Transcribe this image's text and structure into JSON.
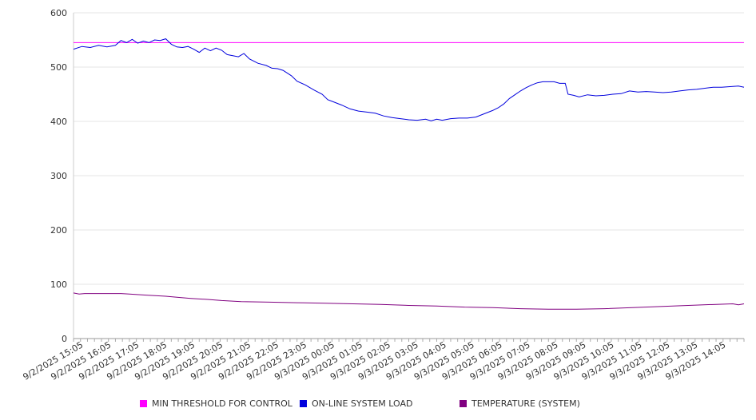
{
  "chart_data": {
    "type": "line",
    "ylim": [
      0,
      600
    ],
    "yticks": [
      0,
      100,
      200,
      300,
      400,
      500,
      600
    ],
    "x_labels": [
      "9/2/2025 15:05",
      "9/2/2025 16:05",
      "9/2/2025 17:05",
      "9/2/2025 18:05",
      "9/2/2025 19:05",
      "9/2/2025 20:05",
      "9/2/2025 21:05",
      "9/2/2025 22:05",
      "9/2/2025 23:05",
      "9/3/2025 00:05",
      "9/3/2025 01:05",
      "9/3/2025 02:05",
      "9/3/2025 03:05",
      "9/3/2025 04:05",
      "9/3/2025 05:05",
      "9/3/2025 06:05",
      "9/3/2025 07:05",
      "9/3/2025 08:05",
      "9/3/2025 09:05",
      "9/3/2025 10:05",
      "9/3/2025 11:05",
      "9/3/2025 12:05",
      "9/3/2025 13:05",
      "9/3/2025 14:05"
    ],
    "x_hours_range": [
      0,
      24
    ],
    "grid": true,
    "legend_position": "bottom",
    "series": [
      {
        "name": "MIN THRESHOLD FOR CONTROL",
        "color": "#ff00ff",
        "points": [
          [
            0,
            545
          ],
          [
            24,
            545
          ]
        ]
      },
      {
        "name": "ON-LINE SYSTEM LOAD",
        "color": "#0000dd",
        "points": [
          [
            0,
            533
          ],
          [
            0.3,
            538
          ],
          [
            0.6,
            536
          ],
          [
            0.9,
            540
          ],
          [
            1.2,
            537
          ],
          [
            1.5,
            540
          ],
          [
            1.7,
            549
          ],
          [
            1.9,
            545
          ],
          [
            2.1,
            551
          ],
          [
            2.3,
            544
          ],
          [
            2.5,
            548
          ],
          [
            2.7,
            545
          ],
          [
            2.9,
            550
          ],
          [
            3.1,
            549
          ],
          [
            3.3,
            552
          ],
          [
            3.5,
            542
          ],
          [
            3.7,
            537
          ],
          [
            3.9,
            536
          ],
          [
            4.1,
            538
          ],
          [
            4.3,
            533
          ],
          [
            4.5,
            527
          ],
          [
            4.7,
            535
          ],
          [
            4.9,
            530
          ],
          [
            5.1,
            535
          ],
          [
            5.3,
            531
          ],
          [
            5.5,
            523
          ],
          [
            5.7,
            521
          ],
          [
            5.9,
            519
          ],
          [
            6.1,
            525
          ],
          [
            6.3,
            515
          ],
          [
            6.6,
            507
          ],
          [
            6.9,
            503
          ],
          [
            7.1,
            498
          ],
          [
            7.3,
            497
          ],
          [
            7.5,
            494
          ],
          [
            7.8,
            484
          ],
          [
            8.0,
            474
          ],
          [
            8.3,
            467
          ],
          [
            8.6,
            458
          ],
          [
            8.9,
            450
          ],
          [
            9.1,
            440
          ],
          [
            9.3,
            436
          ],
          [
            9.6,
            430
          ],
          [
            9.9,
            423
          ],
          [
            10.2,
            419
          ],
          [
            10.5,
            417
          ],
          [
            10.8,
            415
          ],
          [
            11.1,
            410
          ],
          [
            11.4,
            407
          ],
          [
            11.7,
            405
          ],
          [
            12.0,
            403
          ],
          [
            12.3,
            402
          ],
          [
            12.6,
            404
          ],
          [
            12.8,
            401
          ],
          [
            13.0,
            404
          ],
          [
            13.2,
            402
          ],
          [
            13.5,
            405
          ],
          [
            13.8,
            406
          ],
          [
            14.1,
            406
          ],
          [
            14.4,
            408
          ],
          [
            14.7,
            414
          ],
          [
            15.0,
            420
          ],
          [
            15.2,
            425
          ],
          [
            15.4,
            432
          ],
          [
            15.6,
            442
          ],
          [
            15.8,
            449
          ],
          [
            16.0,
            456
          ],
          [
            16.2,
            462
          ],
          [
            16.4,
            467
          ],
          [
            16.6,
            471
          ],
          [
            16.8,
            473
          ],
          [
            17.0,
            473
          ],
          [
            17.2,
            473
          ],
          [
            17.4,
            470
          ],
          [
            17.6,
            470
          ],
          [
            17.7,
            450
          ],
          [
            17.9,
            448
          ],
          [
            18.1,
            445
          ],
          [
            18.4,
            449
          ],
          [
            18.7,
            447
          ],
          [
            19.0,
            448
          ],
          [
            19.3,
            450
          ],
          [
            19.6,
            451
          ],
          [
            19.9,
            456
          ],
          [
            20.2,
            454
          ],
          [
            20.5,
            455
          ],
          [
            20.8,
            454
          ],
          [
            21.1,
            453
          ],
          [
            21.4,
            454
          ],
          [
            21.7,
            456
          ],
          [
            22.0,
            458
          ],
          [
            22.3,
            459
          ],
          [
            22.6,
            461
          ],
          [
            22.9,
            463
          ],
          [
            23.2,
            463
          ],
          [
            23.5,
            464
          ],
          [
            23.8,
            465
          ],
          [
            24,
            463
          ]
        ]
      },
      {
        "name": "TEMPERATURE (SYSTEM)",
        "color": "#800080",
        "points": [
          [
            0,
            84
          ],
          [
            0.2,
            82
          ],
          [
            0.4,
            83
          ],
          [
            1,
            83
          ],
          [
            1.7,
            83
          ],
          [
            2,
            82
          ],
          [
            2.6,
            80
          ],
          [
            3.3,
            78
          ],
          [
            3.7,
            76
          ],
          [
            4.2,
            74
          ],
          [
            4.8,
            72
          ],
          [
            5.3,
            70
          ],
          [
            6,
            68
          ],
          [
            7,
            67
          ],
          [
            8,
            66
          ],
          [
            9,
            65
          ],
          [
            10,
            64
          ],
          [
            11,
            63
          ],
          [
            12,
            61
          ],
          [
            13,
            60
          ],
          [
            14,
            58
          ],
          [
            15,
            57
          ],
          [
            16,
            55
          ],
          [
            17,
            54
          ],
          [
            18,
            54
          ],
          [
            19,
            55
          ],
          [
            20,
            57
          ],
          [
            21,
            59
          ],
          [
            22,
            61
          ],
          [
            23,
            63
          ],
          [
            23.6,
            64
          ],
          [
            23.8,
            62
          ],
          [
            24,
            64
          ]
        ]
      }
    ]
  }
}
